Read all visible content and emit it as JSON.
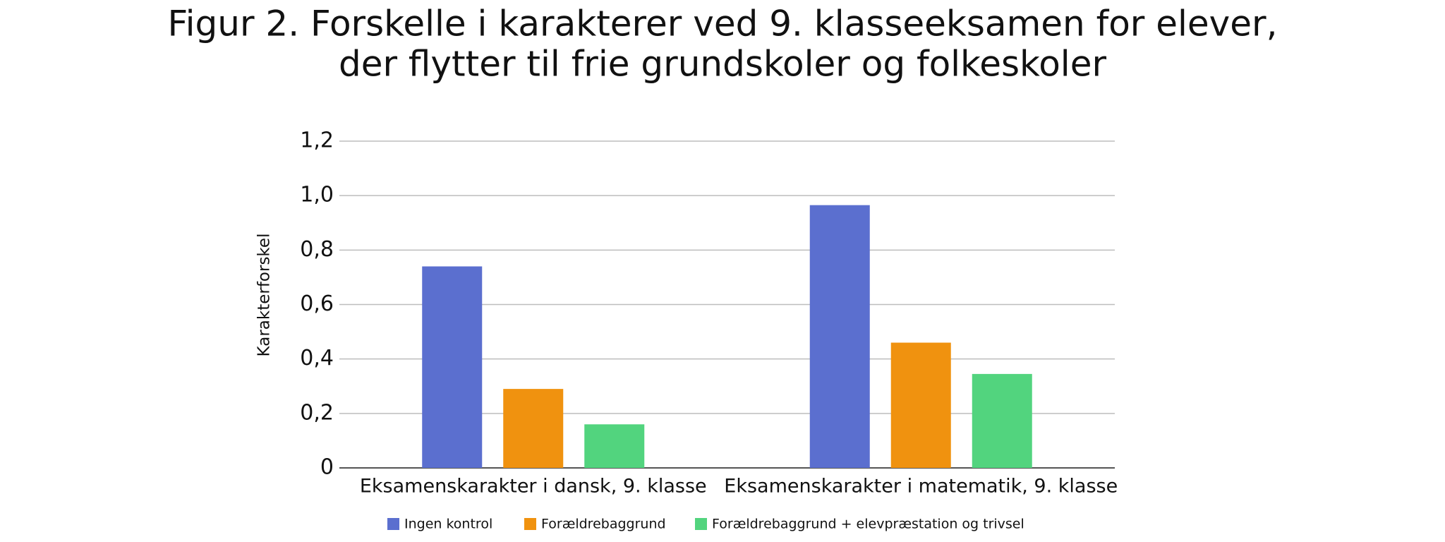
{
  "chart_data": {
    "type": "bar",
    "title": [
      "Figur 2. Forskelle i karakterer ved 9. klasseeksamen for elever,",
      "der flytter til frie grundskoler og folkeskoler"
    ],
    "y_label": "Karakterforskel",
    "categories": [
      "Eksamenskarakter i dansk, 9. klasse",
      "Eksamenskarakter i matematik, 9. klasse"
    ],
    "series": [
      {
        "name": "Ingen kontrol",
        "color": "#5b6fcf",
        "values": [
          0.74,
          0.965
        ]
      },
      {
        "name": "Forældrebaggrund",
        "color": "#f0920f",
        "values": [
          0.29,
          0.46
        ]
      },
      {
        "name": "Forældrebaggrund + elevpræstation og trivsel",
        "color": "#52d47e",
        "values": [
          0.16,
          0.345
        ]
      }
    ],
    "ylim": [
      0,
      1.2
    ],
    "yticks": [
      0,
      {
        "value": 0.2,
        "label": "0,2"
      },
      {
        "value": 0.4,
        "label": "0,4"
      },
      {
        "value": 0.6,
        "label": "0,6"
      },
      {
        "value": 0.8,
        "label": "0,8"
      },
      {
        "value": 1.0,
        "label": "1,0"
      },
      {
        "value": 1.2,
        "label": "1,2"
      }
    ],
    "grid": true,
    "legend": "bottom"
  }
}
